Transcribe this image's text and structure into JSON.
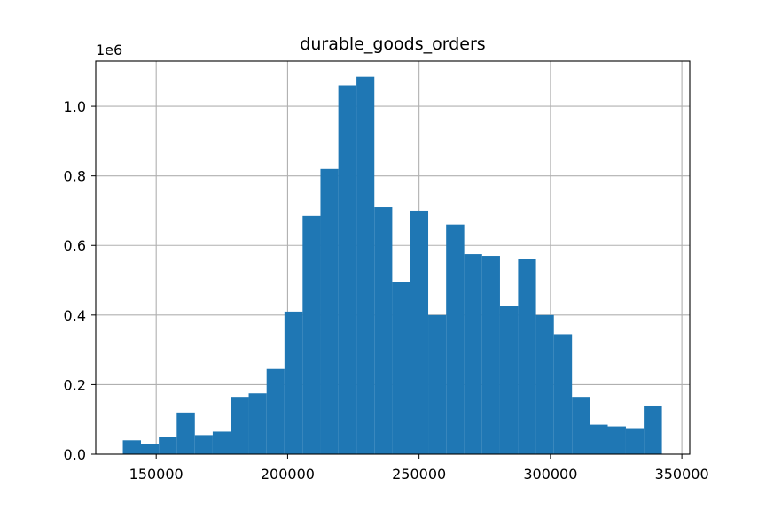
{
  "chart_data": {
    "type": "bar",
    "title": "durable_goods_orders",
    "xlabel": "",
    "ylabel": "",
    "y_offset_label": "1e6",
    "xlim": [
      127000,
      353000
    ],
    "ylim": [
      0,
      1.13
    ],
    "x_ticks": [
      {
        "value": 150000,
        "label": "150000"
      },
      {
        "value": 200000,
        "label": "200000"
      },
      {
        "value": 250000,
        "label": "250000"
      },
      {
        "value": 300000,
        "label": "300000"
      },
      {
        "value": 350000,
        "label": "350000"
      }
    ],
    "y_ticks": [
      {
        "value": 0.0,
        "label": "0.0"
      },
      {
        "value": 0.2,
        "label": "0.2"
      },
      {
        "value": 0.4,
        "label": "0.4"
      },
      {
        "value": 0.6,
        "label": "0.6"
      },
      {
        "value": 0.8,
        "label": "0.8"
      },
      {
        "value": 1.0,
        "label": "1.0"
      }
    ],
    "grid": true,
    "bar_color": "#1f77b4",
    "bins": [
      {
        "start": 137300,
        "end": 144200,
        "value": 0.04
      },
      {
        "start": 144200,
        "end": 151000,
        "value": 0.03
      },
      {
        "start": 151000,
        "end": 157800,
        "value": 0.05
      },
      {
        "start": 157800,
        "end": 164700,
        "value": 0.12
      },
      {
        "start": 164700,
        "end": 171500,
        "value": 0.055
      },
      {
        "start": 171500,
        "end": 178300,
        "value": 0.065
      },
      {
        "start": 178300,
        "end": 185200,
        "value": 0.165
      },
      {
        "start": 185200,
        "end": 192000,
        "value": 0.175
      },
      {
        "start": 192000,
        "end": 198800,
        "value": 0.245
      },
      {
        "start": 198800,
        "end": 205700,
        "value": 0.41
      },
      {
        "start": 205700,
        "end": 212500,
        "value": 0.685
      },
      {
        "start": 212500,
        "end": 219300,
        "value": 0.82
      },
      {
        "start": 219300,
        "end": 226200,
        "value": 1.06
      },
      {
        "start": 226200,
        "end": 233000,
        "value": 1.085
      },
      {
        "start": 233000,
        "end": 239800,
        "value": 0.71
      },
      {
        "start": 239800,
        "end": 246700,
        "value": 0.495
      },
      {
        "start": 246700,
        "end": 253500,
        "value": 0.7
      },
      {
        "start": 253500,
        "end": 260300,
        "value": 0.4
      },
      {
        "start": 260300,
        "end": 267200,
        "value": 0.66
      },
      {
        "start": 267200,
        "end": 274000,
        "value": 0.575
      },
      {
        "start": 274000,
        "end": 280800,
        "value": 0.57
      },
      {
        "start": 280800,
        "end": 287700,
        "value": 0.425
      },
      {
        "start": 287700,
        "end": 294500,
        "value": 0.56
      },
      {
        "start": 294500,
        "end": 301300,
        "value": 0.4
      },
      {
        "start": 301300,
        "end": 308200,
        "value": 0.345
      },
      {
        "start": 308200,
        "end": 315000,
        "value": 0.165
      },
      {
        "start": 315000,
        "end": 321800,
        "value": 0.085
      },
      {
        "start": 321800,
        "end": 328700,
        "value": 0.08
      },
      {
        "start": 328700,
        "end": 335500,
        "value": 0.075
      },
      {
        "start": 335500,
        "end": 342400,
        "value": 0.14
      }
    ]
  }
}
